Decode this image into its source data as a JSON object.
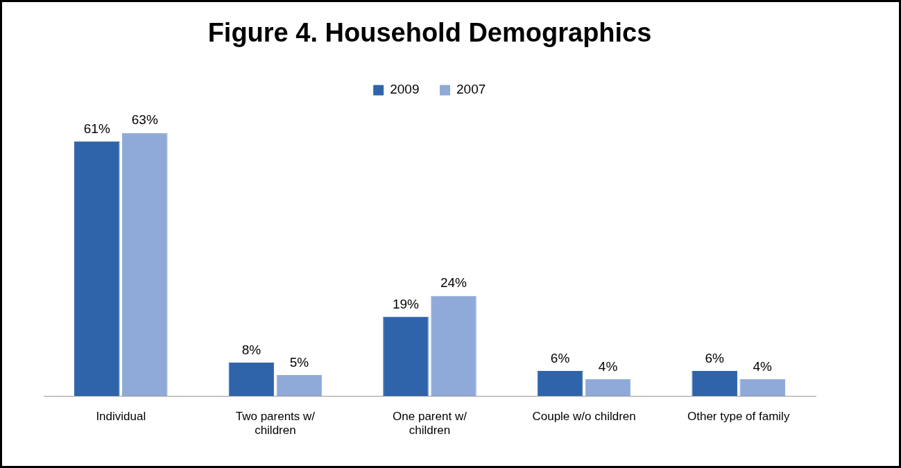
{
  "chart_data": {
    "type": "bar",
    "title": "Figure 4. Household Demographics",
    "categories": [
      "Individual",
      "Two parents w/ children",
      "One parent w/ children",
      "Couple w/o children",
      "Other type of family"
    ],
    "series": [
      {
        "name": "2009",
        "color": "#2f64ab",
        "values": [
          61,
          8,
          19,
          6,
          6
        ],
        "value_labels": [
          "61%",
          "8%",
          "19%",
          "6%",
          "6%"
        ]
      },
      {
        "name": "2007",
        "color": "#8faad8",
        "values": [
          63,
          5,
          24,
          4,
          4
        ],
        "value_labels": [
          "63%",
          "5%",
          "24%",
          "4%",
          "4%"
        ]
      }
    ],
    "legend": "top",
    "grid": false
  }
}
